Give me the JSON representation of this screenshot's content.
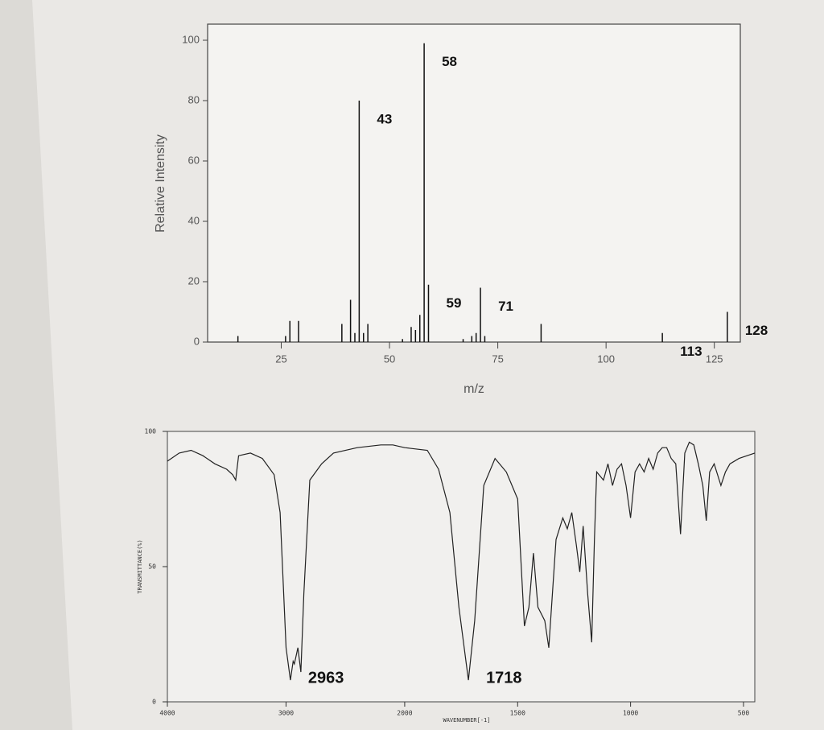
{
  "chart_data": [
    {
      "type": "bar",
      "xlabel": "m/z",
      "ylabel": "Relative Intensity",
      "x": [
        15,
        26,
        27,
        29,
        39,
        41,
        42,
        43,
        44,
        45,
        53,
        55,
        56,
        57,
        58,
        59,
        67,
        69,
        70,
        71,
        72,
        85,
        113,
        128
      ],
      "values": [
        2,
        2,
        7,
        7,
        6,
        14,
        3,
        80,
        3,
        6,
        1,
        5,
        4,
        9,
        99,
        19,
        1,
        2,
        3,
        18,
        2,
        6,
        3,
        10
      ],
      "color": "#111111",
      "xlim": [
        8,
        131
      ],
      "xticks": [
        25,
        50,
        75,
        100,
        125
      ],
      "ylim": [
        0,
        100
      ],
      "yticks": [
        0,
        20,
        40,
        60,
        80,
        100
      ],
      "peak_labels": [
        {
          "label": "43",
          "x": 43
        },
        {
          "label": "58",
          "x": 58
        },
        {
          "label": "59",
          "x": 59
        },
        {
          "label": "71",
          "x": 71
        },
        {
          "label": "113",
          "x": 113
        },
        {
          "label": "128",
          "x": 128
        }
      ]
    },
    {
      "type": "line",
      "xlabel": "WAVENUMBER[-1]",
      "ylabel": "TRANSMITTANCE(%)",
      "x": [
        4000,
        3900,
        3800,
        3700,
        3600,
        3500,
        3450,
        3424,
        3400,
        3300,
        3200,
        3100,
        3050,
        3000,
        2963,
        2940,
        2930,
        2900,
        2875,
        2850,
        2800,
        2700,
        2600,
        2400,
        2200,
        2100,
        2000,
        1900,
        1850,
        1800,
        1760,
        1718,
        1690,
        1650,
        1600,
        1550,
        1500,
        1470,
        1450,
        1430,
        1410,
        1380,
        1362,
        1330,
        1300,
        1280,
        1260,
        1240,
        1225,
        1210,
        1190,
        1172,
        1160,
        1150,
        1120,
        1100,
        1080,
        1060,
        1040,
        1020,
        1000,
        980,
        960,
        940,
        920,
        900,
        880,
        860,
        840,
        820,
        800,
        779,
        760,
        740,
        720,
        700,
        680,
        665,
        650,
        630,
        600,
        580,
        560,
        520,
        450
      ],
      "values": [
        89,
        92,
        93,
        91,
        88,
        86,
        84,
        82,
        91,
        92,
        90,
        84,
        70,
        20,
        8,
        15,
        14,
        20,
        11,
        40,
        82,
        88,
        92,
        94,
        95,
        95,
        94,
        93,
        86,
        70,
        35,
        8,
        30,
        80,
        90,
        85,
        75,
        28,
        35,
        55,
        35,
        30,
        20,
        60,
        68,
        64,
        70,
        58,
        48,
        65,
        40,
        22,
        60,
        85,
        82,
        88,
        80,
        86,
        88,
        80,
        68,
        85,
        88,
        85,
        90,
        86,
        92,
        94,
        94,
        90,
        88,
        62,
        92,
        96,
        95,
        88,
        80,
        67,
        85,
        88,
        80,
        85,
        88,
        90,
        92
      ],
      "color": "#222222",
      "xlim": [
        4000,
        450
      ],
      "scale_break": 2000,
      "xticks": [
        4000,
        3000,
        2000,
        1500,
        1000,
        500
      ],
      "ylim": [
        0,
        100
      ],
      "yticks": [
        0,
        50,
        100
      ],
      "annotations": [
        {
          "label": "2963",
          "x": 2963
        },
        {
          "label": "1718",
          "x": 1718
        }
      ]
    }
  ]
}
